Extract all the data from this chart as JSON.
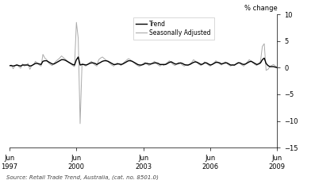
{
  "ylabel_right": "% change",
  "source_text": "Source: Retail Trade Trend, Australia, (cat. no. 8501.0)",
  "ylim": [
    -15,
    10
  ],
  "yticks": [
    -15,
    -10,
    -5,
    0,
    5,
    10
  ],
  "legend_entries": [
    "Trend",
    "Seasonally Adjusted"
  ],
  "trend_color": "#000000",
  "seasonal_color": "#aaaaaa",
  "background_color": "#ffffff",
  "fig_width": 3.97,
  "fig_height": 2.27,
  "seasonal_data": [
    0.3,
    0.5,
    -0.2,
    0.4,
    0.6,
    0.2,
    -0.1,
    0.7,
    0.3,
    0.5,
    0.8,
    -0.3,
    0.4,
    0.6,
    1.2,
    0.8,
    0.5,
    0.3,
    2.5,
    1.8,
    1.5,
    0.9,
    0.6,
    0.4,
    0.8,
    1.2,
    1.5,
    1.8,
    2.2,
    1.9,
    1.6,
    1.3,
    0.9,
    0.7,
    0.4,
    0.2,
    8.5,
    5.5,
    -10.5,
    0.8,
    0.5,
    0.3,
    0.6,
    0.9,
    1.2,
    0.8,
    0.5,
    0.3,
    1.5,
    1.8,
    2.0,
    1.7,
    1.4,
    1.1,
    0.8,
    0.5,
    0.3,
    0.6,
    0.9,
    0.7,
    0.4,
    0.8,
    1.1,
    1.4,
    1.7,
    1.5,
    1.2,
    0.9,
    0.6,
    0.4,
    0.2,
    0.5,
    0.8,
    1.0,
    0.7,
    0.4,
    0.6,
    0.9,
    1.2,
    0.8,
    0.5,
    0.3,
    0.6,
    0.4,
    0.7,
    1.0,
    1.3,
    0.9,
    0.6,
    0.4,
    0.7,
    1.0,
    0.8,
    0.5,
    0.3,
    0.6,
    0.4,
    0.7,
    1.0,
    1.5,
    1.2,
    0.9,
    0.6,
    0.4,
    0.7,
    1.1,
    0.8,
    0.5,
    0.3,
    0.6,
    0.9,
    1.3,
    1.0,
    0.7,
    0.5,
    0.8,
    1.1,
    0.8,
    0.5,
    0.3,
    0.6,
    0.4,
    0.7,
    1.0,
    0.8,
    0.5,
    0.3,
    0.7,
    1.1,
    1.5,
    1.2,
    0.9,
    0.6,
    0.4,
    0.8,
    1.2,
    4.0,
    4.5,
    -0.5,
    -0.3,
    0.2,
    0.4,
    0.6,
    0.3,
    0.1,
    -0.5,
    -0.3,
    -0.2
  ],
  "trend_data": [
    0.4,
    0.4,
    0.3,
    0.4,
    0.5,
    0.4,
    0.3,
    0.5,
    0.5,
    0.5,
    0.5,
    0.3,
    0.4,
    0.6,
    0.8,
    0.8,
    0.7,
    0.6,
    1.2,
    1.3,
    1.3,
    1.1,
    0.9,
    0.7,
    0.7,
    0.9,
    1.1,
    1.3,
    1.5,
    1.5,
    1.4,
    1.2,
    1.0,
    0.8,
    0.6,
    0.5,
    1.5,
    2.0,
    0.5,
    0.6,
    0.6,
    0.5,
    0.6,
    0.8,
    0.9,
    0.9,
    0.8,
    0.6,
    0.8,
    1.0,
    1.2,
    1.3,
    1.3,
    1.2,
    1.0,
    0.8,
    0.6,
    0.6,
    0.7,
    0.7,
    0.6,
    0.7,
    0.9,
    1.1,
    1.3,
    1.3,
    1.2,
    1.0,
    0.8,
    0.6,
    0.5,
    0.5,
    0.6,
    0.8,
    0.8,
    0.7,
    0.7,
    0.8,
    0.9,
    0.9,
    0.8,
    0.6,
    0.6,
    0.6,
    0.6,
    0.8,
    1.0,
    1.1,
    0.9,
    0.7,
    0.7,
    0.8,
    0.9,
    0.8,
    0.6,
    0.5,
    0.5,
    0.6,
    0.8,
    1.0,
    1.1,
    1.0,
    0.8,
    0.6,
    0.7,
    0.9,
    0.9,
    0.7,
    0.5,
    0.6,
    0.8,
    1.0,
    1.0,
    0.9,
    0.7,
    0.8,
    0.9,
    0.9,
    0.7,
    0.5,
    0.5,
    0.5,
    0.7,
    0.9,
    0.9,
    0.7,
    0.6,
    0.7,
    0.9,
    1.1,
    1.2,
    1.0,
    0.8,
    0.6,
    0.7,
    0.9,
    1.5,
    1.8,
    0.8,
    0.4,
    0.2,
    0.2,
    0.2,
    0.1,
    0.0,
    -0.1,
    -0.2,
    -0.3
  ]
}
